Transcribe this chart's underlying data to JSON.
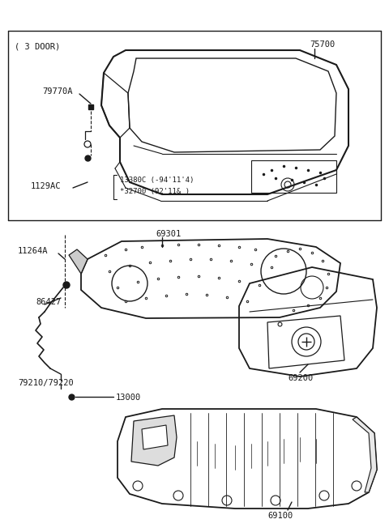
{
  "bg_color": "#ffffff",
  "lc": "#1a1a1a",
  "figsize": [
    4.8,
    6.57
  ],
  "dpi": 100,
  "labels": {
    "3door": "( 3 DOOR)",
    "75700": "75700",
    "79770A": "79770A",
    "1129AC": "1129AC",
    "13380C": "13380C (-94'11'4)",
    "32700": "*32700 (92'11& )",
    "69301": "69301",
    "11264A": "11264A",
    "86427": "86427",
    "79210": "79210/79220",
    "13000": "13000",
    "69200": "69200",
    "69100": "69100"
  }
}
